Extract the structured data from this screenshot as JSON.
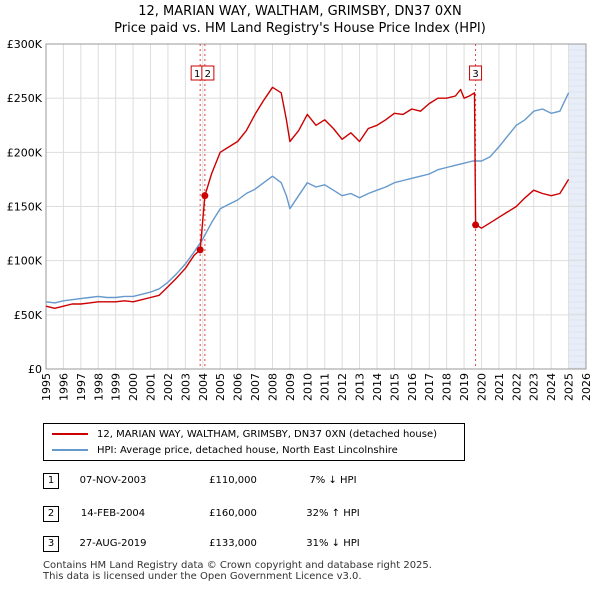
{
  "title_line1": "12, MARIAN WAY, WALTHAM, GRIMSBY, DN37 0XN",
  "title_line2": "Price paid vs. HM Land Registry's House Price Index (HPI)",
  "chart_data": {
    "type": "line",
    "ylim": [
      0,
      300000
    ],
    "xlim": [
      1995,
      2026
    ],
    "y_ticks": [
      0,
      50000,
      100000,
      150000,
      200000,
      250000,
      300000
    ],
    "y_tick_labels": [
      "£0",
      "£50K",
      "£100K",
      "£150K",
      "£200K",
      "£250K",
      "£300K"
    ],
    "x_ticks": [
      1995,
      1996,
      1997,
      1998,
      1999,
      2000,
      2001,
      2002,
      2003,
      2004,
      2005,
      2006,
      2007,
      2008,
      2009,
      2010,
      2011,
      2012,
      2013,
      2014,
      2015,
      2016,
      2017,
      2018,
      2019,
      2020,
      2021,
      2022,
      2023,
      2024,
      2025,
      2026
    ],
    "x_tick_labels": [
      "1995",
      "1996",
      "1997",
      "1998",
      "1999",
      "2000",
      "2001",
      "2002",
      "2003",
      "2004",
      "2005",
      "2006",
      "2007",
      "2008",
      "2009",
      "2010",
      "2011",
      "2012",
      "2013",
      "2014",
      "2015",
      "2016",
      "2017",
      "2018",
      "2019",
      "2020",
      "2021",
      "2022",
      "2023",
      "2024",
      "2025",
      "2026"
    ],
    "grid": true,
    "series": [
      {
        "name": "12, MARIAN WAY, WALTHAM, GRIMSBY, DN37 0XN (detached house)",
        "color": "#cc0000",
        "x": [
          1995.0,
          1995.5,
          1996.0,
          1996.5,
          1997.0,
          1997.5,
          1998.0,
          1998.5,
          1999.0,
          1999.5,
          2000.0,
          2000.5,
          2001.0,
          2001.5,
          2002.0,
          2002.5,
          2003.0,
          2003.5,
          2003.85,
          2004.12,
          2004.5,
          2005.0,
          2005.5,
          2006.0,
          2006.5,
          2007.0,
          2007.5,
          2008.0,
          2008.5,
          2008.8,
          2009.0,
          2009.5,
          2010.0,
          2010.5,
          2011.0,
          2011.5,
          2012.0,
          2012.5,
          2013.0,
          2013.5,
          2014.0,
          2014.5,
          2015.0,
          2015.5,
          2016.0,
          2016.5,
          2017.0,
          2017.5,
          2018.0,
          2018.5,
          2018.8,
          2019.0,
          2019.3,
          2019.6,
          2019.66,
          2019.8,
          2020.0,
          2020.5,
          2021.0,
          2021.5,
          2022.0,
          2022.5,
          2023.0,
          2023.5,
          2024.0,
          2024.5,
          2025.0
        ],
        "y": [
          58000,
          56000,
          58000,
          60000,
          60000,
          61000,
          62000,
          62000,
          62000,
          63000,
          62000,
          64000,
          66000,
          68000,
          76000,
          84000,
          93000,
          105000,
          110000,
          160000,
          180000,
          200000,
          205000,
          210000,
          220000,
          235000,
          248000,
          260000,
          255000,
          230000,
          210000,
          220000,
          235000,
          225000,
          230000,
          222000,
          212000,
          218000,
          210000,
          222000,
          225000,
          230000,
          236000,
          235000,
          240000,
          238000,
          245000,
          250000,
          250000,
          252000,
          258000,
          250000,
          252000,
          255000,
          133000,
          132000,
          130000,
          135000,
          140000,
          145000,
          150000,
          158000,
          165000,
          162000,
          160000,
          162000,
          175000
        ]
      },
      {
        "name": "HPI: Average price, detached house, North East Lincolnshire",
        "color": "#6699cc",
        "x": [
          1995.0,
          1995.5,
          1996.0,
          1996.5,
          1997.0,
          1997.5,
          1998.0,
          1998.5,
          1999.0,
          1999.5,
          2000.0,
          2000.5,
          2001.0,
          2001.5,
          2002.0,
          2002.5,
          2003.0,
          2003.5,
          2004.0,
          2004.5,
          2005.0,
          2005.5,
          2006.0,
          2006.5,
          2007.0,
          2007.5,
          2008.0,
          2008.5,
          2008.8,
          2009.0,
          2009.5,
          2010.0,
          2010.5,
          2011.0,
          2011.5,
          2012.0,
          2012.5,
          2013.0,
          2013.5,
          2014.0,
          2014.5,
          2015.0,
          2015.5,
          2016.0,
          2016.5,
          2017.0,
          2017.5,
          2018.0,
          2018.5,
          2019.0,
          2019.5,
          2020.0,
          2020.5,
          2021.0,
          2021.5,
          2022.0,
          2022.5,
          2023.0,
          2023.5,
          2024.0,
          2024.5,
          2025.0
        ],
        "y": [
          62000,
          61000,
          63000,
          64000,
          65000,
          66000,
          67000,
          66000,
          66000,
          67000,
          67000,
          69000,
          71000,
          74000,
          80000,
          88000,
          97000,
          108000,
          120000,
          135000,
          148000,
          152000,
          156000,
          162000,
          166000,
          172000,
          178000,
          172000,
          160000,
          148000,
          160000,
          172000,
          168000,
          170000,
          165000,
          160000,
          162000,
          158000,
          162000,
          165000,
          168000,
          172000,
          174000,
          176000,
          178000,
          180000,
          184000,
          186000,
          188000,
          190000,
          192000,
          192000,
          196000,
          205000,
          215000,
          225000,
          230000,
          238000,
          240000,
          236000,
          238000,
          255000
        ]
      }
    ],
    "markers": [
      {
        "label": "1",
        "x": 2003.85,
        "y": 110000
      },
      {
        "label": "2",
        "x": 2004.12,
        "y": 160000
      },
      {
        "label": "3",
        "x": 2019.66,
        "y": 133000
      }
    ],
    "shaded_region": {
      "from": 2025.0,
      "to": 2026.0
    }
  },
  "legend": {
    "items": [
      {
        "label": "12, MARIAN WAY, WALTHAM, GRIMSBY, DN37 0XN (detached house)",
        "color": "#cc0000"
      },
      {
        "label": "HPI: Average price, detached house, North East Lincolnshire",
        "color": "#6699cc"
      }
    ]
  },
  "transactions": [
    {
      "num": "1",
      "date": "07-NOV-2003",
      "price": "£110,000",
      "hpi": "7% ↓ HPI"
    },
    {
      "num": "2",
      "date": "14-FEB-2004",
      "price": "£160,000",
      "hpi": "32% ↑ HPI"
    },
    {
      "num": "3",
      "date": "27-AUG-2019",
      "price": "£133,000",
      "hpi": "31% ↓ HPI"
    }
  ],
  "footer_line1": "Contains HM Land Registry data © Crown copyright and database right 2025.",
  "footer_line2": "This data is licensed under the Open Government Licence v3.0."
}
